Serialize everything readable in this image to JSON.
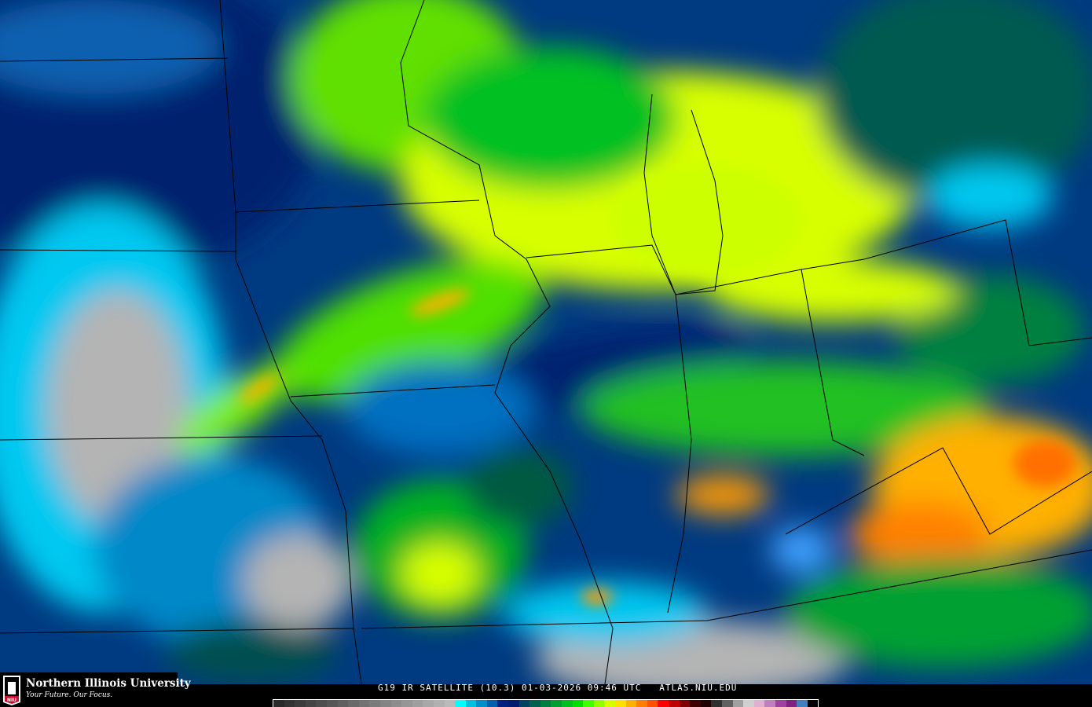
{
  "caption": "G19 IR SATELLITE (10.3) 01-03-2026 09:46 UTC   ATLAS.NIU.EDU",
  "logo": {
    "name": "Northern Illinois University",
    "tagline": "Your Future. Our Focus.",
    "mark": "NIU"
  },
  "colors": {
    "background": "#000000",
    "clear_gray": "#b4b4b4",
    "cyan": "#00e6ff",
    "navy": "#00206e",
    "green": "#00c020",
    "yellow": "#d8ff00",
    "orange": "#ff9a00"
  },
  "colorbar": [
    "#2a2a2a",
    "#333",
    "#3c3c3c",
    "#454545",
    "#4e4e4e",
    "#575757",
    "#606060",
    "#696969",
    "#727272",
    "#7b7b7b",
    "#848484",
    "#8d8d8d",
    "#969696",
    "#9f9f9f",
    "#a8a8a8",
    "#b1b1b1",
    "#bababa",
    "#00ffff",
    "#00c0e0",
    "#0090c8",
    "#0060b0",
    "#002080",
    "#001c70",
    "#004060",
    "#006050",
    "#008040",
    "#00a030",
    "#00c020",
    "#00e000",
    "#40ff00",
    "#90ff00",
    "#d8ff00",
    "#ffe000",
    "#ffb000",
    "#ff8000",
    "#ff5000",
    "#ff0000",
    "#c00000",
    "#800000",
    "#400000",
    "#200000",
    "#303030",
    "#606060",
    "#a0a0a0",
    "#d0d0d0",
    "#e0b0d0",
    "#c080c0",
    "#a040a0",
    "#802080",
    "#4080c0",
    "#000000"
  ]
}
